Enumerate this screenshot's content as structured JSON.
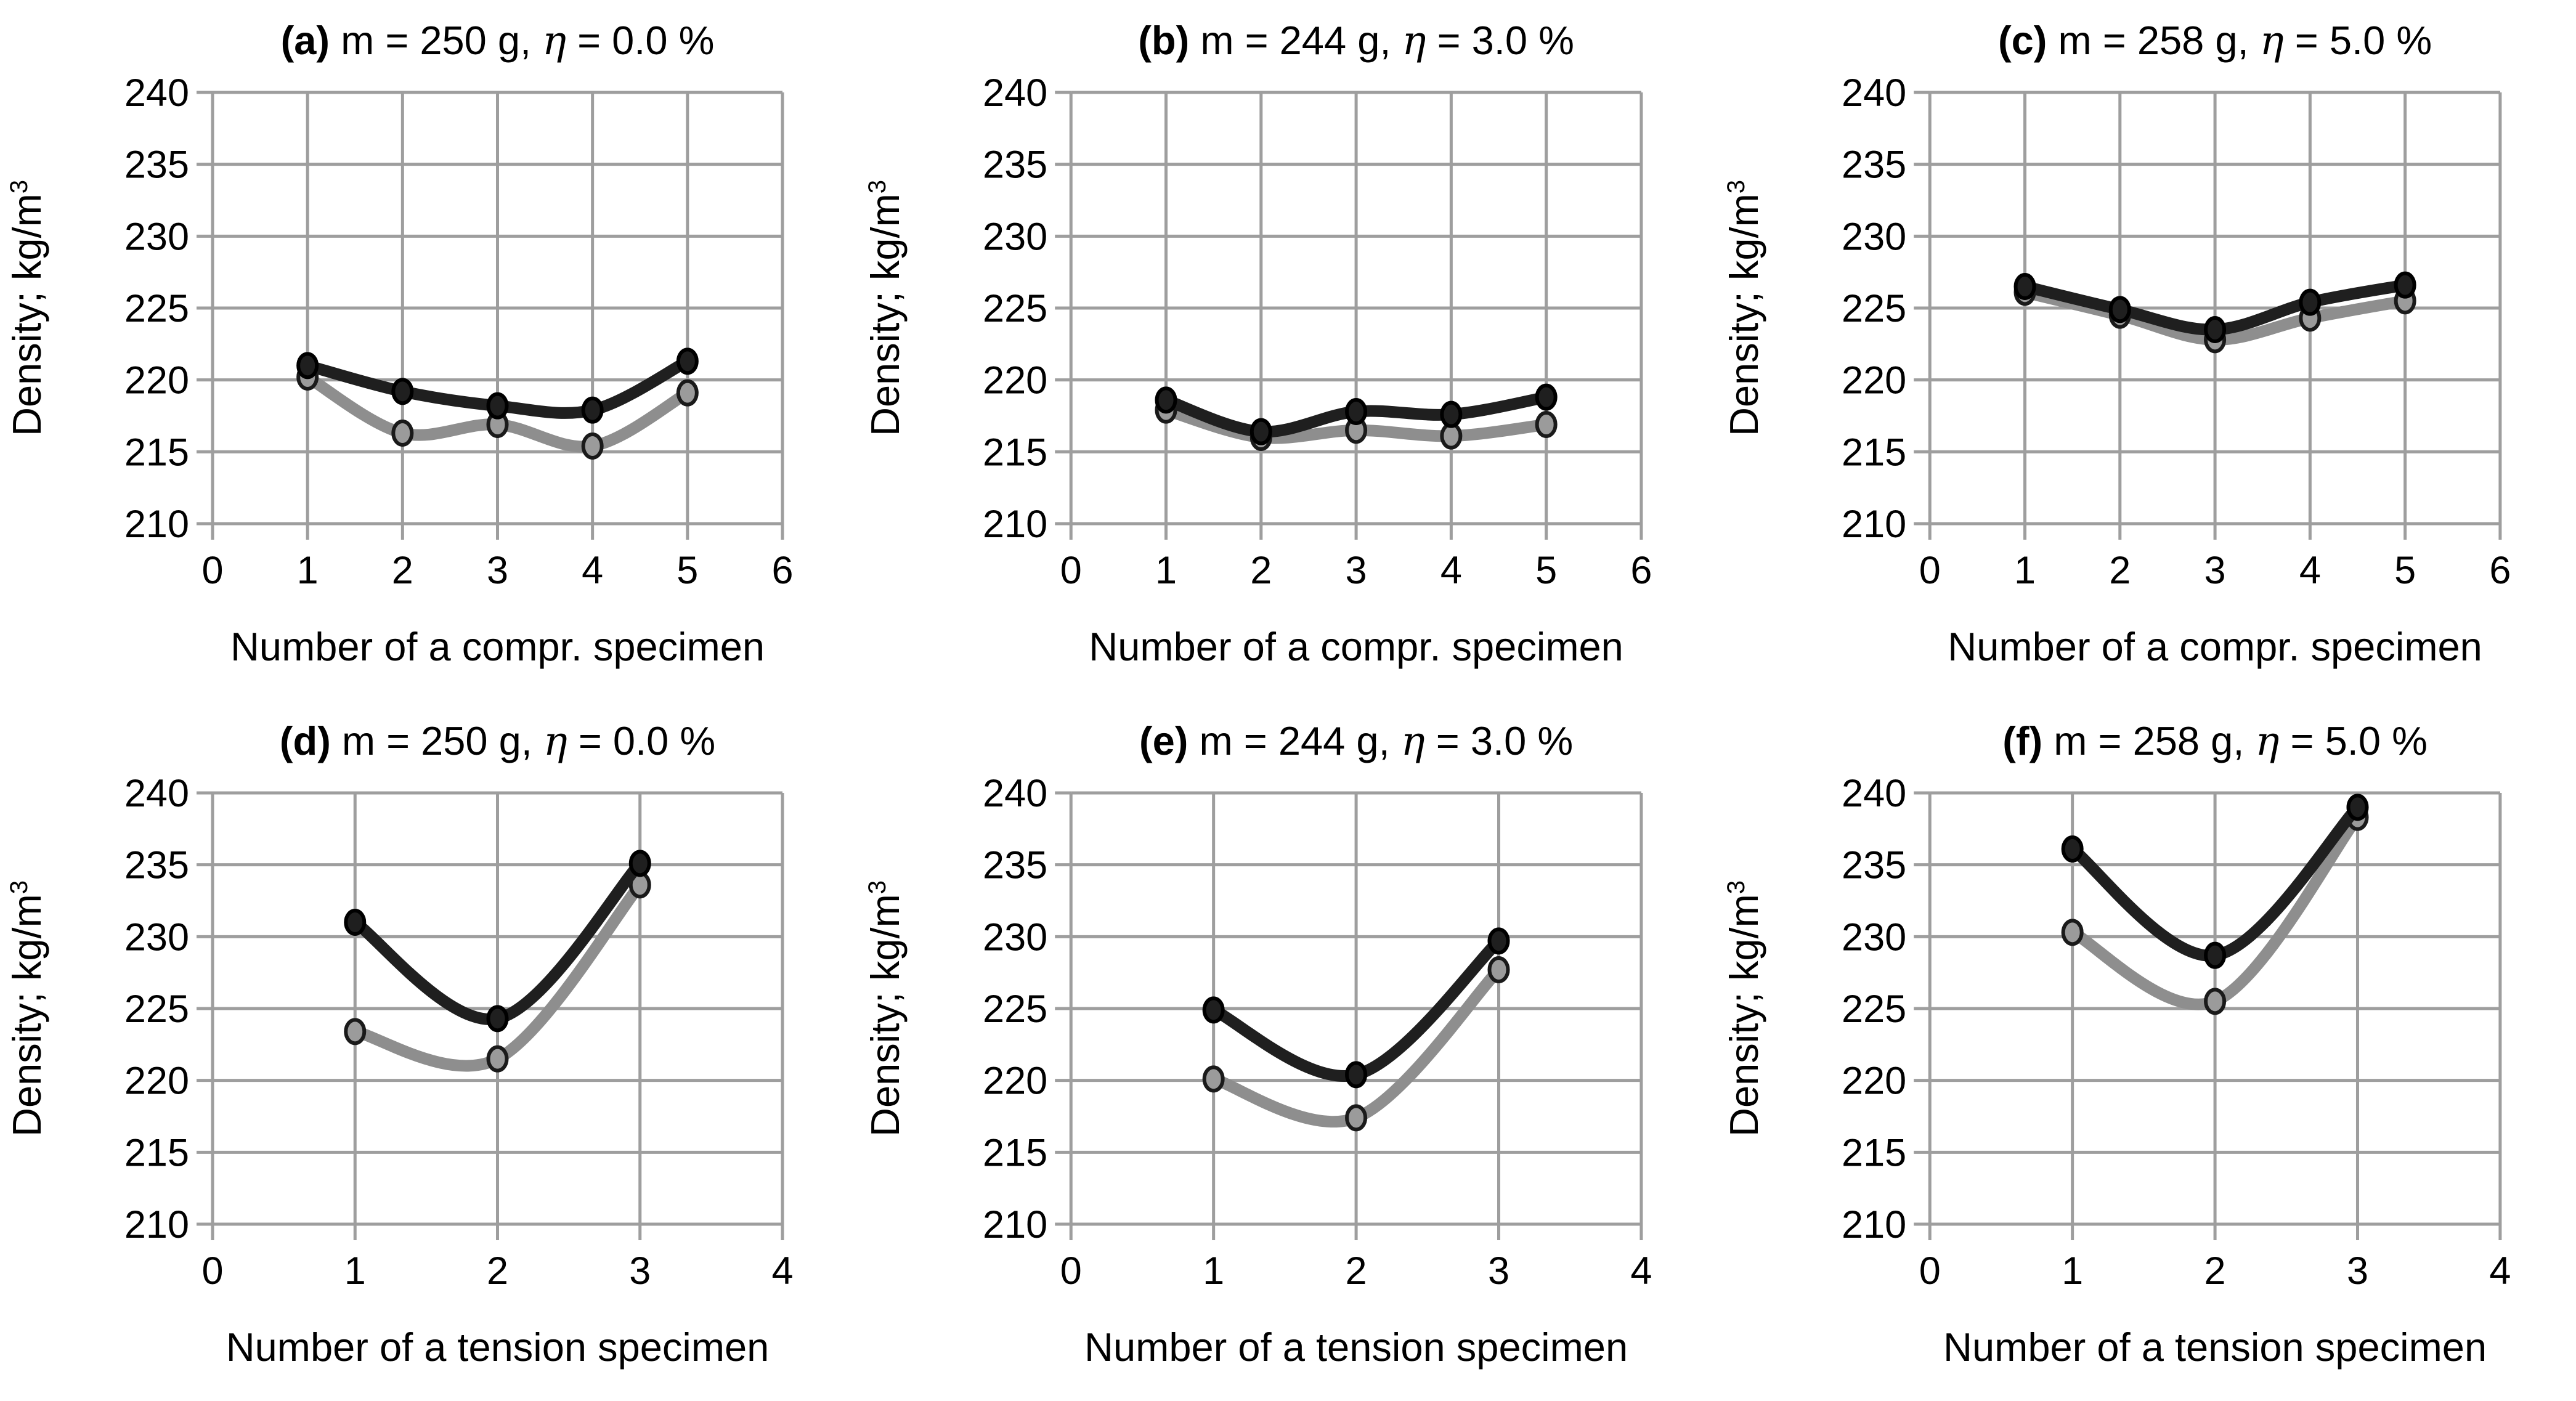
{
  "figure": {
    "background": "#ffffff",
    "text_color": "#000000",
    "grid_color": "#9e9e9e",
    "series_styles": {
      "dark": {
        "line": "#1f1f1f",
        "marker_fill": "#1f1f1f",
        "marker_stroke": "#000000"
      },
      "light": {
        "line": "#8e8e8e",
        "marker_fill": "#9b9b9b",
        "marker_stroke": "#1a1a1a"
      }
    }
  },
  "chart_data": [
    {
      "type": "line",
      "panel": "a",
      "condition": "m = 250 g, η = 0.0 %",
      "title_full": "(a) m = 250 g, η = 0.0 %",
      "xlabel": "Number of a compr. specimen",
      "ylabel": "Density; kg/m",
      "ylabel_sup": "3",
      "xlim": [
        0,
        6
      ],
      "ylim": [
        210,
        240
      ],
      "xticks": [
        0,
        1,
        2,
        3,
        4,
        5,
        6
      ],
      "yticks": [
        210,
        215,
        220,
        225,
        230,
        235,
        240
      ],
      "grid": true,
      "legend": "none",
      "x": [
        1,
        2,
        3,
        4,
        5
      ],
      "series": [
        {
          "name": "dark",
          "values": [
            221.0,
            219.2,
            218.2,
            217.9,
            221.3
          ]
        },
        {
          "name": "light",
          "values": [
            220.2,
            216.3,
            216.9,
            215.4,
            219.1
          ]
        }
      ]
    },
    {
      "type": "line",
      "panel": "b",
      "condition": "m = 244 g, η = 3.0 %",
      "title_full": "(b) m = 244 g, η = 3.0 %",
      "xlabel": "Number of a compr. specimen",
      "ylabel": "Density; kg/m",
      "ylabel_sup": "3",
      "xlim": [
        0,
        6
      ],
      "ylim": [
        210,
        240
      ],
      "xticks": [
        0,
        1,
        2,
        3,
        4,
        5,
        6
      ],
      "yticks": [
        210,
        215,
        220,
        225,
        230,
        235,
        240
      ],
      "grid": true,
      "legend": "none",
      "x": [
        1,
        2,
        3,
        4,
        5
      ],
      "series": [
        {
          "name": "dark",
          "values": [
            218.6,
            216.4,
            217.8,
            217.6,
            218.8
          ]
        },
        {
          "name": "light",
          "values": [
            217.9,
            216.0,
            216.5,
            216.1,
            216.9
          ]
        }
      ]
    },
    {
      "type": "line",
      "panel": "c",
      "condition": "m = 258 g, η = 5.0 %",
      "title_full": "(c) m = 258 g, η = 5.0 %",
      "xlabel": "Number of a compr. specimen",
      "ylabel": "Density; kg/m",
      "ylabel_sup": "3",
      "xlim": [
        0,
        6
      ],
      "ylim": [
        210,
        240
      ],
      "xticks": [
        0,
        1,
        2,
        3,
        4,
        5,
        6
      ],
      "yticks": [
        210,
        215,
        220,
        225,
        230,
        235,
        240
      ],
      "grid": true,
      "legend": "none",
      "x": [
        1,
        2,
        3,
        4,
        5
      ],
      "series": [
        {
          "name": "dark",
          "values": [
            226.5,
            224.9,
            223.5,
            225.4,
            226.6
          ]
        },
        {
          "name": "light",
          "values": [
            226.1,
            224.5,
            222.8,
            224.3,
            225.5
          ]
        }
      ]
    },
    {
      "type": "line",
      "panel": "d",
      "condition": "m = 250 g, η = 0.0 %",
      "title_full": "(d) m = 250 g, η = 0.0 %",
      "xlabel": "Number of a tension specimen",
      "ylabel": "Density; kg/m",
      "ylabel_sup": "3",
      "xlim": [
        0,
        4
      ],
      "ylim": [
        210,
        240
      ],
      "xticks": [
        0,
        1,
        2,
        3,
        4
      ],
      "yticks": [
        210,
        215,
        220,
        225,
        230,
        235,
        240
      ],
      "grid": true,
      "legend": "none",
      "x": [
        1,
        2,
        3
      ],
      "series": [
        {
          "name": "dark",
          "values": [
            231.0,
            224.3,
            235.1
          ]
        },
        {
          "name": "light",
          "values": [
            223.4,
            221.5,
            233.6
          ]
        }
      ]
    },
    {
      "type": "line",
      "panel": "e",
      "condition": "m = 244 g, η = 3.0 %",
      "title_full": "(e) m = 244 g, η = 3.0 %",
      "xlabel": "Number of a tension specimen",
      "ylabel": "Density; kg/m",
      "ylabel_sup": "3",
      "xlim": [
        0,
        4
      ],
      "ylim": [
        210,
        240
      ],
      "xticks": [
        0,
        1,
        2,
        3,
        4
      ],
      "yticks": [
        210,
        215,
        220,
        225,
        230,
        235,
        240
      ],
      "grid": true,
      "legend": "none",
      "x": [
        1,
        2,
        3
      ],
      "series": [
        {
          "name": "dark",
          "values": [
            224.9,
            220.4,
            229.7
          ]
        },
        {
          "name": "light",
          "values": [
            220.1,
            217.4,
            227.7
          ]
        }
      ]
    },
    {
      "type": "line",
      "panel": "f",
      "condition": "m = 258 g, η = 5.0 %",
      "title_full": "(f) m = 258 g, η = 5.0 %",
      "xlabel": "Number of a tension specimen",
      "ylabel": "Density; kg/m",
      "ylabel_sup": "3",
      "xlim": [
        0,
        4
      ],
      "ylim": [
        210,
        240
      ],
      "xticks": [
        0,
        1,
        2,
        3,
        4
      ],
      "yticks": [
        210,
        215,
        220,
        225,
        230,
        235,
        240
      ],
      "grid": true,
      "legend": "none",
      "x": [
        1,
        2,
        3
      ],
      "series": [
        {
          "name": "dark",
          "values": [
            236.1,
            228.7,
            239.0
          ]
        },
        {
          "name": "light",
          "values": [
            230.3,
            225.5,
            238.3
          ]
        }
      ]
    }
  ]
}
